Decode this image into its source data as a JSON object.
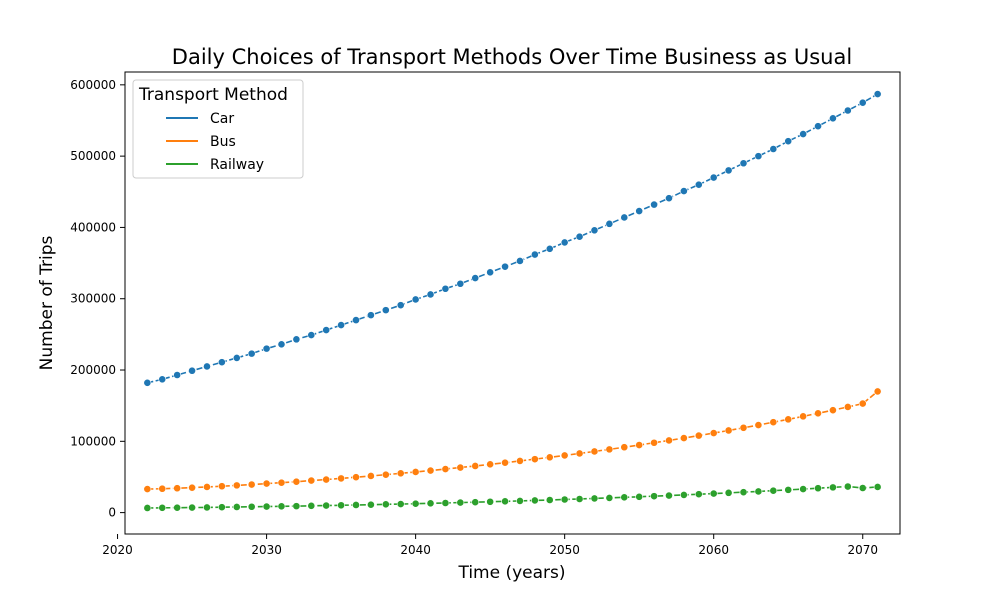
{
  "chart_data": {
    "type": "line",
    "title": "Daily Choices of Transport Methods Over Time Business as Usual",
    "xlabel": "Time (years)",
    "ylabel": "Number of Trips",
    "xlim": [
      2020.5,
      2072.5
    ],
    "ylim": [
      -30000,
      618000
    ],
    "xticks": [
      2020,
      2030,
      2040,
      2050,
      2060,
      2070
    ],
    "yticks": [
      0,
      100000,
      200000,
      300000,
      400000,
      500000,
      600000
    ],
    "legend": {
      "title": "Transport Method",
      "placement": "top-left"
    },
    "grid": false,
    "x": [
      2022,
      2023,
      2024,
      2025,
      2026,
      2027,
      2028,
      2029,
      2030,
      2031,
      2032,
      2033,
      2034,
      2035,
      2036,
      2037,
      2038,
      2039,
      2040,
      2041,
      2042,
      2043,
      2044,
      2045,
      2046,
      2047,
      2048,
      2049,
      2050,
      2051,
      2052,
      2053,
      2054,
      2055,
      2056,
      2057,
      2058,
      2059,
      2060,
      2061,
      2062,
      2063,
      2064,
      2065,
      2066,
      2067,
      2068,
      2069,
      2070,
      2071
    ],
    "series": [
      {
        "name": "Car",
        "color": "#1f77b4",
        "values": [
          182000,
          187000,
          193000,
          199000,
          205000,
          211000,
          217000,
          223000,
          230000,
          236000,
          243000,
          249000,
          256000,
          263000,
          270000,
          277000,
          284000,
          291000,
          299000,
          306000,
          314000,
          321000,
          329000,
          337000,
          345000,
          353000,
          362000,
          370000,
          379000,
          387000,
          396000,
          405000,
          414000,
          423000,
          432000,
          441000,
          451000,
          460000,
          470000,
          480000,
          490000,
          500000,
          510000,
          521000,
          531000,
          542000,
          553000,
          564000,
          575000,
          587000
        ]
      },
      {
        "name": "Bus",
        "color": "#ff7f0e",
        "values": [
          33000,
          33500,
          34200,
          35000,
          36000,
          37000,
          38200,
          39400,
          40700,
          42000,
          43400,
          44900,
          46400,
          48000,
          49700,
          51400,
          53200,
          55100,
          57000,
          59000,
          61100,
          63200,
          65400,
          67700,
          70000,
          72500,
          75000,
          77600,
          80200,
          83000,
          85800,
          88700,
          91700,
          94800,
          98000,
          101200,
          104600,
          108000,
          111600,
          115200,
          119000,
          122800,
          126800,
          130800,
          135000,
          139300,
          143700,
          148200,
          152900,
          170000
        ]
      },
      {
        "name": "Railway",
        "color": "#2ca02c",
        "values": [
          6500,
          6700,
          6900,
          7100,
          7300,
          7600,
          7900,
          8200,
          8500,
          8800,
          9100,
          9500,
          9900,
          10300,
          10700,
          11100,
          11600,
          12000,
          12500,
          13000,
          13500,
          14100,
          14600,
          15200,
          15800,
          16400,
          17100,
          17700,
          18400,
          19100,
          19900,
          20600,
          21400,
          22200,
          23100,
          23900,
          24800,
          25800,
          26700,
          27700,
          28700,
          29700,
          30800,
          31900,
          33000,
          34200,
          35400,
          36600,
          34500,
          36000
        ]
      }
    ]
  }
}
